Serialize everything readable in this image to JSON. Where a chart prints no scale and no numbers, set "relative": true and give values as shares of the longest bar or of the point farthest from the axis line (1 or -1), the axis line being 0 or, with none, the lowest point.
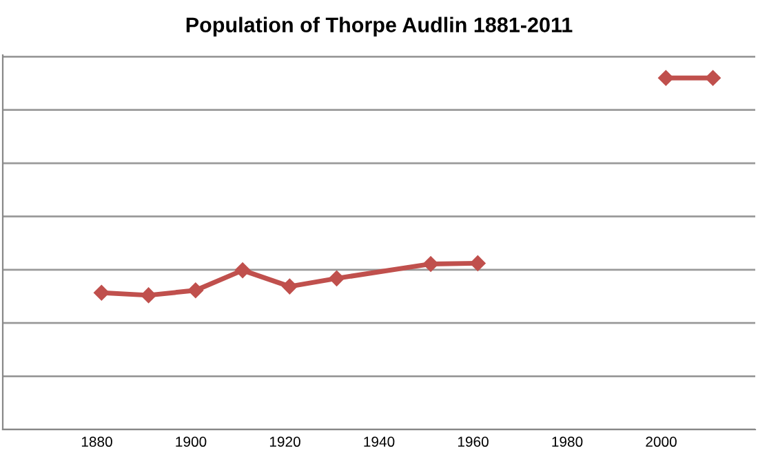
{
  "chart_data": {
    "type": "line",
    "title": "Population of Thorpe Audlin 1881-2011",
    "relative": true,
    "x": [
      1881,
      1891,
      1901,
      1911,
      1921,
      1931,
      1951,
      1961,
      1981,
      2001,
      2011
    ],
    "series": [
      {
        "color": "#c0504d",
        "values": [
          0.389,
          0.382,
          0.396,
          0.453,
          0.407,
          0.43,
          0.471,
          0.473,
          null,
          1,
          1
        ]
      }
    ],
    "xlim": [
      1860,
      2020
    ],
    "xticks": [
      1880,
      1900,
      1920,
      1940,
      1960,
      1980,
      2000
    ],
    "tick_labels": "x",
    "grid": "y",
    "marker": "diamond",
    "line_style": "solid",
    "legend": false
  }
}
